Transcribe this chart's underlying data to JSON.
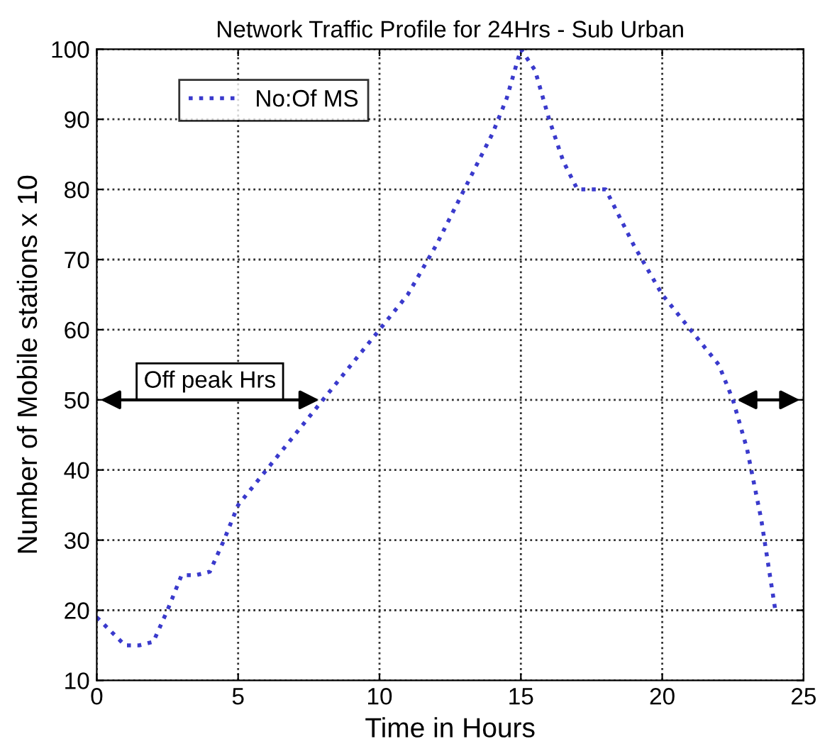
{
  "chart_data": {
    "type": "line",
    "title": "Network Traffic Profile for 24Hrs - Sub Urban",
    "xlabel": "Time in Hours",
    "ylabel": "Number of Mobile stations x 10",
    "series": [
      {
        "name": "No:Of MS",
        "color": "#3a3acc",
        "x": [
          0,
          0.5,
          1,
          1.5,
          2,
          2.5,
          3,
          3.5,
          4,
          4.5,
          5,
          6,
          7,
          8,
          9,
          10,
          11,
          12,
          13,
          14,
          14.5,
          15,
          15.5,
          16,
          16.5,
          17,
          18,
          19,
          20,
          21,
          22,
          22.5,
          23,
          23.5,
          24
        ],
        "values": [
          19,
          17,
          15,
          15,
          15.5,
          20,
          25,
          25,
          25.5,
          30,
          35,
          40,
          45,
          50,
          55,
          60,
          65,
          72,
          80,
          88,
          93,
          100,
          97,
          90,
          84,
          80,
          80,
          72,
          65,
          60,
          55,
          50,
          43,
          33,
          20
        ]
      }
    ],
    "xlim": [
      0,
      25
    ],
    "ylim": [
      10,
      100
    ],
    "xticks": [
      0,
      5,
      10,
      15,
      20,
      25
    ],
    "yticks": [
      10,
      20,
      30,
      40,
      50,
      60,
      70,
      80,
      90,
      100
    ],
    "grid": true,
    "legend": "top left",
    "line_style": "dotted",
    "marker": "none",
    "annotations": [
      "Off peak Hrs"
    ]
  }
}
